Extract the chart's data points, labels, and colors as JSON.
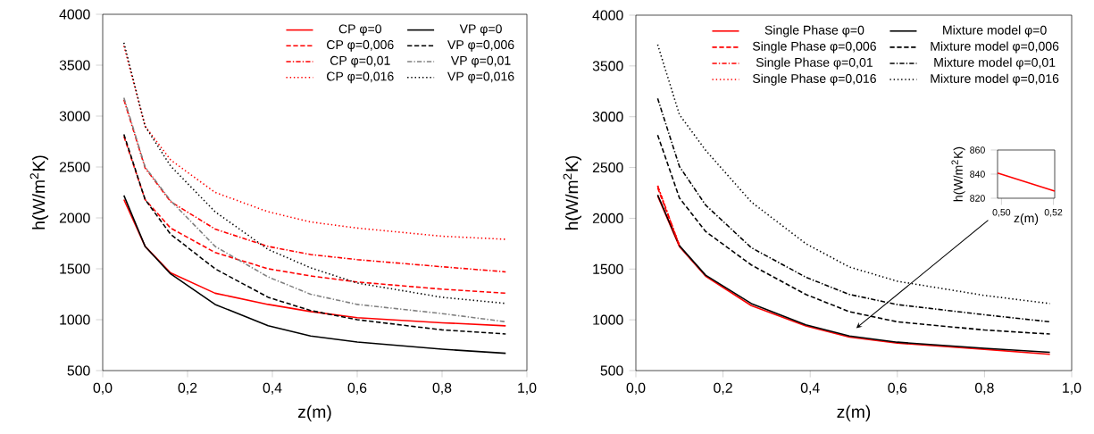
{
  "chart_data": [
    {
      "type": "line",
      "xlabel": "z(m)",
      "ylabel": "h(W/m$^{2}$K)",
      "xlim": [
        0,
        1
      ],
      "ylim": [
        500,
        4000
      ],
      "xticks": [
        {
          "value": 0,
          "label": "0,0"
        },
        {
          "value": 0.2,
          "label": "0,2"
        },
        {
          "value": 0.4,
          "label": "0,4"
        },
        {
          "value": 0.6,
          "label": "0,6"
        },
        {
          "value": 0.8,
          "label": "0,8"
        },
        {
          "value": 1,
          "label": "1,0"
        }
      ],
      "yticks": [
        500,
        1000,
        1500,
        2000,
        2500,
        3000,
        3500,
        4000
      ],
      "legend": "top right",
      "x": [
        0.05,
        0.1,
        0.16,
        0.265,
        0.39,
        0.49,
        0.6,
        0.8,
        0.95
      ],
      "series": [
        {
          "name": "CP φ=0",
          "color": "#ff0000",
          "line_style": "solid",
          "values": [
            2180,
            1720,
            1460,
            1260,
            1150,
            1080,
            1020,
            970,
            940
          ]
        },
        {
          "name": "VP φ=0",
          "color": "#000000",
          "line_style": "solid",
          "values": [
            2220,
            1720,
            1450,
            1150,
            940,
            840,
            780,
            710,
            670
          ]
        },
        {
          "name": "CP φ=0,006",
          "color": "#ff0000",
          "line_style": "dashed",
          "values": [
            2800,
            2180,
            1900,
            1660,
            1500,
            1430,
            1370,
            1300,
            1260
          ]
        },
        {
          "name": "VP φ=0,006",
          "color": "#000000",
          "line_style": "dashed",
          "values": [
            2820,
            2180,
            1840,
            1500,
            1220,
            1090,
            1000,
            900,
            860
          ]
        },
        {
          "name": "CP φ=0,01",
          "color": "#ff0000",
          "line_style": "dashdot",
          "values": [
            3160,
            2490,
            2160,
            1890,
            1720,
            1640,
            1590,
            1520,
            1470
          ]
        },
        {
          "name": "VP φ=0,01",
          "color": "#808080",
          "line_style": "dashdot",
          "values": [
            3180,
            2500,
            2170,
            1720,
            1420,
            1250,
            1150,
            1060,
            980
          ]
        },
        {
          "name": "CP φ=0,016",
          "color": "#ff0000",
          "line_style": "dotted",
          "values": [
            3690,
            2900,
            2570,
            2250,
            2060,
            1960,
            1900,
            1820,
            1790
          ]
        },
        {
          "name": "VP φ=0,016",
          "color": "#000000",
          "line_style": "dotted",
          "values": [
            3720,
            2900,
            2510,
            2060,
            1690,
            1510,
            1360,
            1220,
            1160
          ]
        }
      ]
    },
    {
      "type": "line",
      "xlabel": "z(m)",
      "ylabel": "h(W/m$^{2}$K)",
      "xlim": [
        0,
        1
      ],
      "ylim": [
        500,
        4000
      ],
      "xticks": [
        {
          "value": 0,
          "label": "0,0"
        },
        {
          "value": 0.2,
          "label": "0,2"
        },
        {
          "value": 0.4,
          "label": "0,4"
        },
        {
          "value": 0.6,
          "label": "0,6"
        },
        {
          "value": 0.8,
          "label": "0,8"
        },
        {
          "value": 1,
          "label": "1,0"
        }
      ],
      "yticks": [
        500,
        1000,
        1500,
        2000,
        2500,
        3000,
        3500,
        4000
      ],
      "legend": "top right",
      "x": [
        0.05,
        0.1,
        0.16,
        0.265,
        0.39,
        0.49,
        0.6,
        0.8,
        0.95
      ],
      "series": [
        {
          "name": "Single Phase φ=0",
          "color": "#ff0000",
          "line_style": "solid",
          "values": [
            2220,
            1720,
            1430,
            1140,
            940,
            830,
            770,
            710,
            660
          ]
        },
        {
          "name": "Mixture model φ=0",
          "color": "#000000",
          "line_style": "solid",
          "values": [
            2230,
            1730,
            1440,
            1160,
            950,
            840,
            780,
            720,
            680
          ]
        },
        {
          "name": "Single Phase φ=0,006",
          "color": "#ff0000",
          "line_style": "dashed",
          "values": [
            2300,
            1730,
            null,
            null,
            null,
            null,
            null,
            null,
            null
          ]
        },
        {
          "name": "Mixture model φ=0,006",
          "color": "#000000",
          "line_style": "dashed",
          "values": [
            2820,
            2200,
            1870,
            1540,
            1250,
            1080,
            980,
            900,
            860
          ]
        },
        {
          "name": "Single Phase φ=0,01",
          "color": "#ff0000",
          "line_style": "dashdot",
          "values": [
            2320,
            1730,
            null,
            null,
            null,
            null,
            null,
            null,
            null
          ]
        },
        {
          "name": "Mixture model φ=0,01",
          "color": "#000000",
          "line_style": "dashdot",
          "values": [
            3180,
            2510,
            2130,
            1710,
            1420,
            1250,
            1150,
            1050,
            980
          ]
        },
        {
          "name": "Single Phase φ=0,016",
          "color": "#ff0000",
          "line_style": "dotted",
          "values": [
            2320,
            1730,
            null,
            null,
            null,
            null,
            null,
            null,
            null
          ]
        },
        {
          "name": "Mixture model φ=0,016",
          "color": "#000000",
          "line_style": "dotted",
          "values": [
            3710,
            3020,
            2670,
            2160,
            1750,
            1520,
            1380,
            1240,
            1160
          ]
        }
      ]
    },
    {
      "type": "line",
      "xlabel": "z(m)",
      "ylabel": "h(W/m$^{2}$K)",
      "xlim": [
        0.4985,
        0.5205
      ],
      "ylim": [
        820,
        860
      ],
      "xticks": [
        {
          "value": 0.5,
          "label": "0,50"
        },
        {
          "value": 0.52,
          "label": "0,52"
        }
      ],
      "yticks": [
        820,
        840,
        860
      ],
      "x": [
        0.4985,
        0.5205
      ],
      "series": [
        {
          "color": "#ff0000",
          "line_style": "solid",
          "values": [
            841,
            826
          ]
        }
      ]
    }
  ]
}
